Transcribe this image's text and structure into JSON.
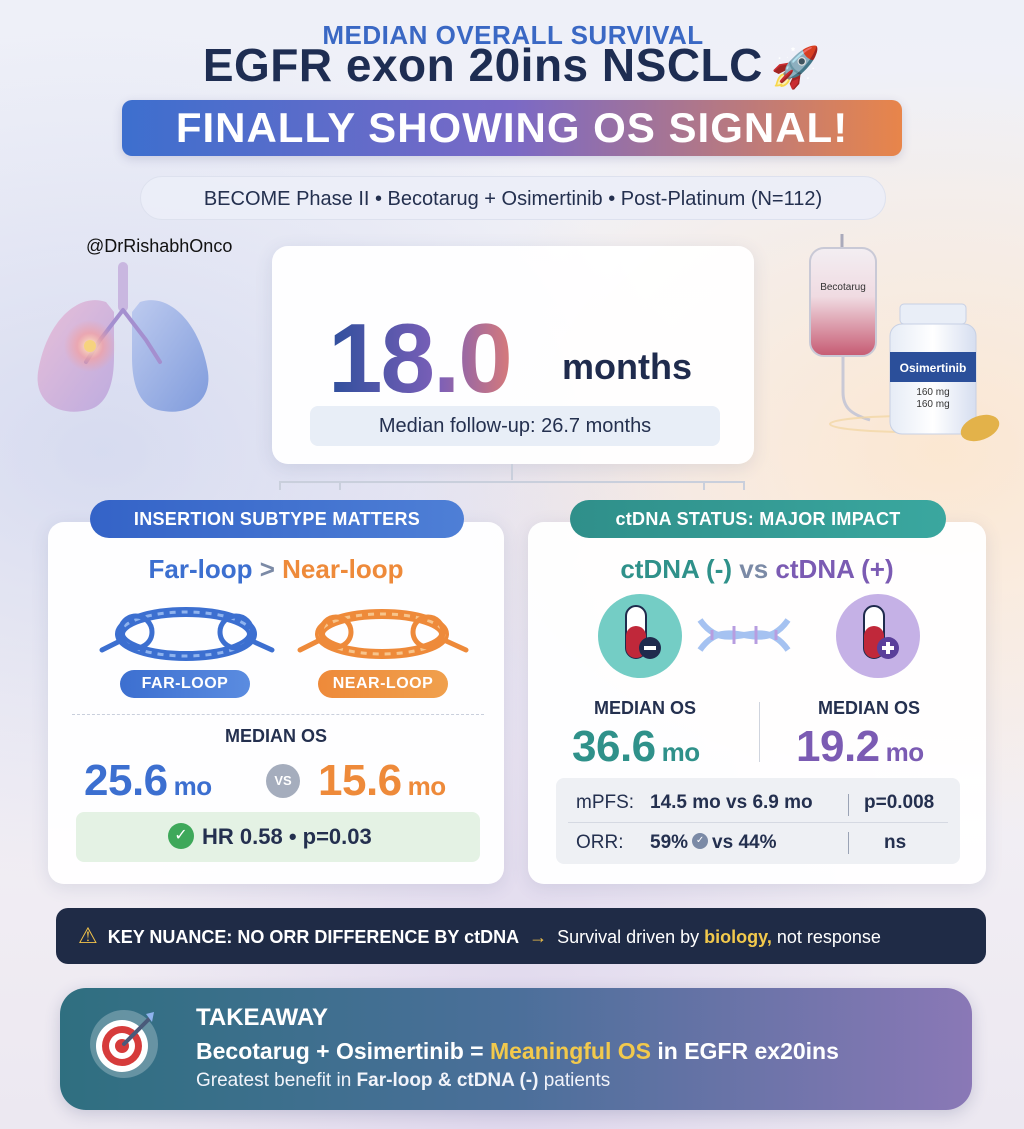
{
  "header": {
    "title": "EGFR exon 20ins NSCLC",
    "rocket": "🚀",
    "banner": "FINALLY SHOWING OS SIGNAL!",
    "subtitle": "BECOME Phase II • Becotarug + Osimertinib • Post-Platinum (N=112)",
    "handle": "@DrRishabhOnco"
  },
  "hero": {
    "label": "MEDIAN OVERALL SURVIVAL",
    "value": "18.0",
    "unit": "months",
    "followup": "Median follow-up: 26.7 months"
  },
  "meds": {
    "bag_label": "Becotarug",
    "bottle_label": "Osimertinib",
    "dose1": "160 mg",
    "dose2": "160 mg"
  },
  "insertion": {
    "chip": "INSERTION SUBTYPE MATTERS",
    "far": "Far-loop",
    "gt": ">",
    "near": "Near-loop",
    "tag_far": "FAR-LOOP",
    "tag_near": "NEAR-LOOP",
    "os_label": "MEDIAN OS",
    "far_value": "25.6",
    "near_value": "15.6",
    "unit": "mo",
    "vs": "VS",
    "hr_text": "HR 0.58 • p=0.03"
  },
  "ctdna": {
    "chip": "ctDNA STATUS: MAJOR IMPACT",
    "neg": "ctDNA (-)",
    "vs": "vs",
    "pos": "ctDNA (+)",
    "os_label_a": "MEDIAN OS",
    "os_label_b": "MEDIAN OS",
    "neg_value": "36.6",
    "pos_value": "19.2",
    "unit": "mo",
    "mpfs_label": "mPFS:",
    "mpfs_values": "14.5 mo vs 6.9 mo",
    "mpfs_p": "p=0.008",
    "orr_label": "ORR:",
    "orr_a": "59%",
    "orr_vs": "vs 44%",
    "orr_p": "ns"
  },
  "nuance": {
    "key": "KEY NUANCE: NO ORR DIFFERENCE BY ctDNA",
    "arrow": "→",
    "text_a": "Survival driven by ",
    "highlight": "biology,",
    "text_b": " not response"
  },
  "takeaway": {
    "title": "TAKEAWAY",
    "line1_a": "Becotarug + Osimertinib = ",
    "line1_hl1": "Meaningful",
    "line1_space": " ",
    "line1_hl2": "OS",
    "line1_b": " in EGFR ex20ins",
    "line2_a": "Greatest benefit in ",
    "line2_b": "Far-loop & ctDNA (-)",
    "line2_c": " patients"
  },
  "colors": {
    "blue": "#3c6fd0",
    "orange": "#ee8a3a",
    "teal": "#2f918a",
    "purple": "#7b5bb3",
    "navy": "#1f2b46",
    "gold": "#f2c94c"
  }
}
